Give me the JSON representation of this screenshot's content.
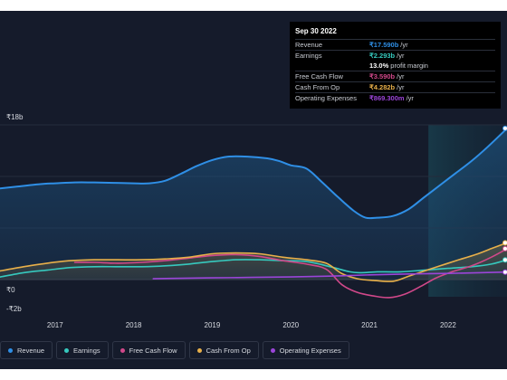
{
  "chart_data": {
    "type": "area",
    "y_axis": {
      "unit_prefix": "₹",
      "max_label": "₹18b",
      "zero_label": "₹0",
      "min_label": "-₹2b",
      "ylim": [
        -2,
        18
      ]
    },
    "x_ticks": [
      "2017",
      "2018",
      "2019",
      "2020",
      "2021",
      "2022"
    ],
    "xlim": [
      2016.3,
      2022.75
    ],
    "highlight_from": 2021.75,
    "series": [
      {
        "name": "Revenue",
        "color": "#2f8fe6",
        "filled": true,
        "points": [
          [
            2016.3,
            10.6
          ],
          [
            2016.5,
            10.8
          ],
          [
            2016.8,
            11.1
          ],
          [
            2017.0,
            11.2
          ],
          [
            2017.25,
            11.3
          ],
          [
            2017.5,
            11.3
          ],
          [
            2017.75,
            11.25
          ],
          [
            2018.0,
            11.2
          ],
          [
            2018.2,
            11.2
          ],
          [
            2018.4,
            11.5
          ],
          [
            2018.6,
            12.3
          ],
          [
            2018.8,
            13.2
          ],
          [
            2019.0,
            13.9
          ],
          [
            2019.2,
            14.3
          ],
          [
            2019.45,
            14.3
          ],
          [
            2019.7,
            14.1
          ],
          [
            2019.85,
            13.8
          ],
          [
            2020.0,
            13.3
          ],
          [
            2020.2,
            12.9
          ],
          [
            2020.4,
            11.3
          ],
          [
            2020.6,
            9.6
          ],
          [
            2020.8,
            8.0
          ],
          [
            2020.95,
            7.2
          ],
          [
            2021.1,
            7.2
          ],
          [
            2021.3,
            7.4
          ],
          [
            2021.5,
            8.2
          ],
          [
            2021.7,
            9.6
          ],
          [
            2021.9,
            11.0
          ],
          [
            2022.1,
            12.4
          ],
          [
            2022.3,
            13.8
          ],
          [
            2022.5,
            15.4
          ],
          [
            2022.75,
            17.59
          ]
        ]
      },
      {
        "name": "Earnings",
        "color": "#36c9be",
        "filled": false,
        "points": [
          [
            2016.3,
            0.3
          ],
          [
            2016.6,
            0.8
          ],
          [
            2016.9,
            1.1
          ],
          [
            2017.2,
            1.4
          ],
          [
            2017.5,
            1.5
          ],
          [
            2017.8,
            1.5
          ],
          [
            2018.1,
            1.5
          ],
          [
            2018.4,
            1.6
          ],
          [
            2018.7,
            1.8
          ],
          [
            2019.0,
            2.1
          ],
          [
            2019.3,
            2.3
          ],
          [
            2019.6,
            2.3
          ],
          [
            2019.9,
            2.2
          ],
          [
            2020.2,
            2.1
          ],
          [
            2020.5,
            1.5
          ],
          [
            2020.75,
            0.9
          ],
          [
            2020.9,
            0.8
          ],
          [
            2021.1,
            0.9
          ],
          [
            2021.4,
            0.9
          ],
          [
            2021.7,
            1.1
          ],
          [
            2022.0,
            1.3
          ],
          [
            2022.3,
            1.5
          ],
          [
            2022.55,
            1.8
          ],
          [
            2022.75,
            2.293
          ]
        ]
      },
      {
        "name": "Free Cash Flow",
        "color": "#d1488a",
        "filled": false,
        "points": [
          [
            2017.25,
            2.0
          ],
          [
            2017.5,
            2.0
          ],
          [
            2017.8,
            1.9
          ],
          [
            2018.1,
            2.0
          ],
          [
            2018.4,
            2.2
          ],
          [
            2018.7,
            2.5
          ],
          [
            2019.0,
            2.8
          ],
          [
            2019.3,
            2.9
          ],
          [
            2019.6,
            2.7
          ],
          [
            2019.9,
            2.2
          ],
          [
            2020.2,
            1.8
          ],
          [
            2020.45,
            1.2
          ],
          [
            2020.65,
            -0.6
          ],
          [
            2020.85,
            -1.5
          ],
          [
            2021.05,
            -1.9
          ],
          [
            2021.25,
            -2.1
          ],
          [
            2021.45,
            -1.7
          ],
          [
            2021.65,
            -0.8
          ],
          [
            2021.85,
            0.2
          ],
          [
            2022.05,
            0.9
          ],
          [
            2022.3,
            1.6
          ],
          [
            2022.55,
            2.6
          ],
          [
            2022.75,
            3.59
          ]
        ]
      },
      {
        "name": "Cash From Op",
        "color": "#e8b04a",
        "filled": true,
        "points": [
          [
            2016.3,
            1.0
          ],
          [
            2016.6,
            1.5
          ],
          [
            2016.9,
            1.9
          ],
          [
            2017.2,
            2.2
          ],
          [
            2017.5,
            2.3
          ],
          [
            2017.8,
            2.3
          ],
          [
            2018.1,
            2.3
          ],
          [
            2018.4,
            2.4
          ],
          [
            2018.7,
            2.6
          ],
          [
            2019.0,
            3.0
          ],
          [
            2019.3,
            3.1
          ],
          [
            2019.6,
            3.0
          ],
          [
            2019.9,
            2.6
          ],
          [
            2020.2,
            2.3
          ],
          [
            2020.45,
            1.9
          ],
          [
            2020.65,
            0.7
          ],
          [
            2020.85,
            0.1
          ],
          [
            2021.05,
            -0.1
          ],
          [
            2021.3,
            -0.2
          ],
          [
            2021.5,
            0.4
          ],
          [
            2021.7,
            1.0
          ],
          [
            2021.9,
            1.6
          ],
          [
            2022.1,
            2.2
          ],
          [
            2022.35,
            2.9
          ],
          [
            2022.55,
            3.6
          ],
          [
            2022.75,
            4.282
          ]
        ]
      },
      {
        "name": "Operating Expenses",
        "color": "#9b45d9",
        "filled": false,
        "points": [
          [
            2018.25,
            0.1
          ],
          [
            2018.6,
            0.15
          ],
          [
            2019.0,
            0.2
          ],
          [
            2019.5,
            0.25
          ],
          [
            2020.0,
            0.3
          ],
          [
            2020.5,
            0.4
          ],
          [
            2021.0,
            0.55
          ],
          [
            2021.5,
            0.65
          ],
          [
            2022.0,
            0.72
          ],
          [
            2022.4,
            0.8
          ],
          [
            2022.75,
            0.8693
          ]
        ]
      }
    ]
  },
  "tooltip": {
    "date": "Sep 30 2022",
    "rows": [
      {
        "label": "Revenue",
        "value": "₹17.590b",
        "unit": "/yr",
        "color": "#2f8fe6"
      },
      {
        "label": "Earnings",
        "value": "₹2.293b",
        "unit": "/yr",
        "color": "#36c9be"
      },
      {
        "label": "",
        "value": "13.0%",
        "unit": "profit margin",
        "color": "#ffffff"
      },
      {
        "label": "Free Cash Flow",
        "value": "₹3.590b",
        "unit": "/yr",
        "color": "#d1488a"
      },
      {
        "label": "Cash From Op",
        "value": "₹4.282b",
        "unit": "/yr",
        "color": "#e8b04a"
      },
      {
        "label": "Operating Expenses",
        "value": "₹869.300m",
        "unit": "/yr",
        "color": "#9b45d9"
      }
    ]
  },
  "legend": [
    {
      "label": "Revenue",
      "color": "#2f8fe6"
    },
    {
      "label": "Earnings",
      "color": "#36c9be"
    },
    {
      "label": "Free Cash Flow",
      "color": "#d1488a"
    },
    {
      "label": "Cash From Op",
      "color": "#e8b04a"
    },
    {
      "label": "Operating Expenses",
      "color": "#9b45d9"
    }
  ]
}
